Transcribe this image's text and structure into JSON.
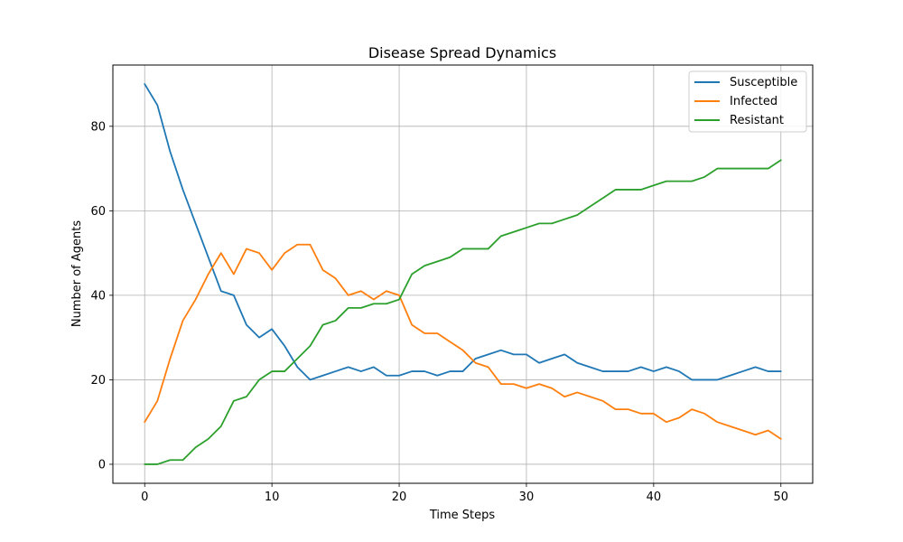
{
  "chart_data": {
    "type": "line",
    "title": "Disease Spread Dynamics",
    "xlabel": "Time Steps",
    "ylabel": "Number of Agents",
    "xlim": [
      -2.5,
      52.5
    ],
    "ylim": [
      -4.5,
      94.5
    ],
    "xticks": [
      0,
      10,
      20,
      30,
      40,
      50
    ],
    "yticks": [
      0,
      20,
      40,
      60,
      80
    ],
    "grid": true,
    "legend_position": "top-right",
    "x": [
      0,
      1,
      2,
      3,
      4,
      5,
      6,
      7,
      8,
      9,
      10,
      11,
      12,
      13,
      14,
      15,
      16,
      17,
      18,
      19,
      20,
      21,
      22,
      23,
      24,
      25,
      26,
      27,
      28,
      29,
      30,
      31,
      32,
      33,
      34,
      35,
      36,
      37,
      38,
      39,
      40,
      41,
      42,
      43,
      44,
      45,
      46,
      47,
      48,
      49,
      50
    ],
    "series": [
      {
        "name": "Susceptible",
        "color": "#1f77b4",
        "values": [
          90,
          85,
          74,
          65,
          57,
          49,
          41,
          40,
          33,
          30,
          32,
          28,
          23,
          20,
          21,
          22,
          23,
          22,
          23,
          21,
          21,
          22,
          22,
          21,
          22,
          22,
          25,
          26,
          27,
          26,
          26,
          24,
          25,
          26,
          24,
          23,
          22,
          22,
          22,
          23,
          22,
          23,
          22,
          20,
          20,
          20,
          21,
          22,
          23,
          22,
          22
        ]
      },
      {
        "name": "Infected",
        "color": "#ff7f0e",
        "values": [
          10,
          15,
          25,
          34,
          39,
          45,
          50,
          45,
          51,
          50,
          46,
          50,
          52,
          52,
          46,
          44,
          40,
          41,
          39,
          41,
          40,
          33,
          31,
          31,
          29,
          27,
          24,
          23,
          19,
          19,
          18,
          19,
          18,
          16,
          17,
          16,
          15,
          13,
          13,
          12,
          12,
          10,
          11,
          13,
          12,
          10,
          9,
          8,
          7,
          8,
          6
        ]
      },
      {
        "name": "Resistant",
        "color": "#2ca02c",
        "values": [
          0,
          0,
          1,
          1,
          4,
          6,
          9,
          15,
          16,
          20,
          22,
          22,
          25,
          28,
          33,
          34,
          37,
          37,
          38,
          38,
          39,
          45,
          47,
          48,
          49,
          51,
          51,
          51,
          54,
          55,
          56,
          57,
          57,
          58,
          59,
          61,
          63,
          65,
          65,
          65,
          66,
          67,
          67,
          67,
          68,
          70,
          70,
          70,
          70,
          70,
          72
        ]
      }
    ]
  }
}
